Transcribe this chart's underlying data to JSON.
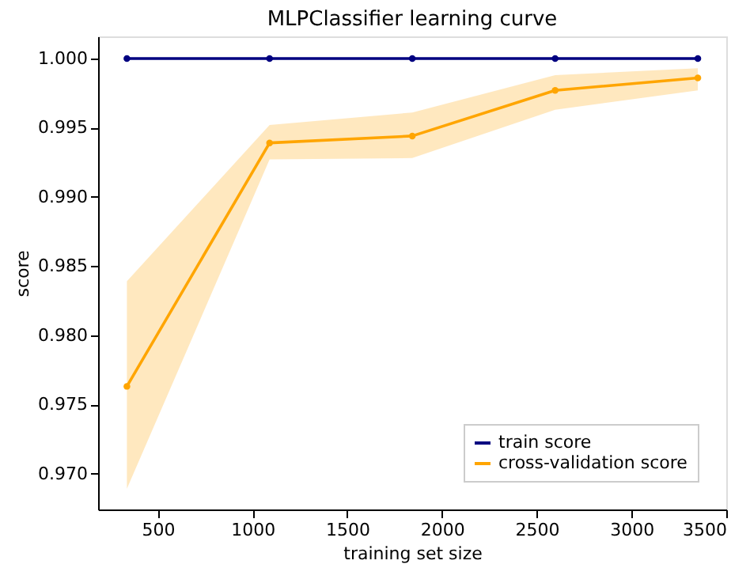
{
  "chart_data": {
    "type": "line",
    "title": "MLPClassifier learning curve",
    "xlabel": "training set size",
    "ylabel": "score",
    "x": [
      337,
      1090,
      1843,
      2597,
      3350
    ],
    "series": [
      {
        "name": "train score",
        "color": "#000080",
        "values": [
          1.0,
          1.0,
          1.0,
          1.0,
          1.0
        ]
      },
      {
        "name": "cross-validation score",
        "color": "#ffa500",
        "values": [
          0.9763,
          0.9939,
          0.9944,
          0.9977,
          0.9986
        ],
        "lower": [
          0.9689,
          0.9927,
          0.9928,
          0.9963,
          0.9977
        ],
        "upper": [
          0.9839,
          0.9952,
          0.9961,
          0.9988,
          0.9993
        ]
      }
    ],
    "xlim": [
      185,
      3500
    ],
    "xticks": [
      500,
      1000,
      1500,
      2000,
      2500,
      3000,
      3500
    ],
    "ylim": [
      0.9674,
      1.0016
    ],
    "yticks": [
      {
        "value": 0.97,
        "label": "0.970"
      },
      {
        "value": 0.975,
        "label": "0.975"
      },
      {
        "value": 0.98,
        "label": "0.980"
      },
      {
        "value": 0.985,
        "label": "0.985"
      },
      {
        "value": 0.99,
        "label": "0.990"
      },
      {
        "value": 0.995,
        "label": "0.995"
      },
      {
        "value": 1.0,
        "label": "1.000"
      }
    ],
    "grid": false,
    "legend": "bottom right",
    "marker": "circle",
    "line_style": "solid"
  }
}
